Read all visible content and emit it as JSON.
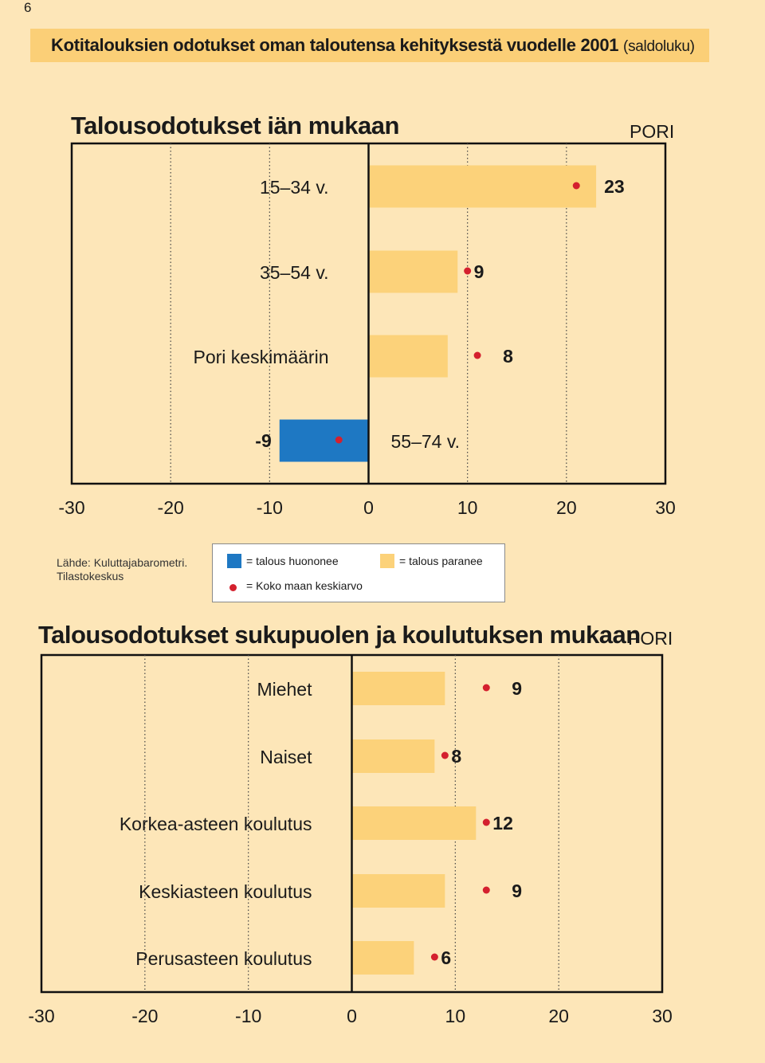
{
  "page_number": "6",
  "header": {
    "title": "Kotitalouksien odotukset oman taloutensa kehityksestä vuodelle 2001",
    "note": "(saldoluku)"
  },
  "legend": {
    "worse_label": "= talous huononee",
    "better_label": "= talous paranee",
    "average_label": "= Koko maan keskiarvo"
  },
  "source": {
    "line1": "Lähde: Kuluttajabarometri.",
    "line2": "Tilastokeskus"
  },
  "colors": {
    "background": "#fde6b8",
    "header_band": "#fbcf77",
    "improve_bar": "#fcd27a",
    "worsen_bar": "#1e78c3",
    "average_marker": "#d4202e"
  },
  "chart_data": [
    {
      "type": "bar",
      "orientation": "horizontal",
      "title": "Talousodotukset iän mukaan",
      "region": "PORI",
      "categories": [
        "15–34 v.",
        "35–54 v.",
        "Pori keskimäärin",
        "55–74 v."
      ],
      "value_labels": [
        "23",
        "9",
        "8",
        "-9"
      ],
      "values": [
        23,
        9,
        8,
        -9
      ],
      "country_average": [
        21,
        10,
        11,
        -3
      ],
      "xlim": [
        -30,
        30
      ],
      "xticks": [
        "-30",
        "-20",
        "-10",
        "0",
        "10",
        "20",
        "30"
      ],
      "grid": "dotted vertical at ±10, ±20"
    },
    {
      "type": "bar",
      "orientation": "horizontal",
      "title": "Talousodotukset sukupuolen ja koulutuksen mukaan",
      "region": "PORI",
      "categories": [
        "Miehet",
        "Naiset",
        "Korkea-asteen koulutus",
        "Keskiasteen koulutus",
        "Perusasteen koulutus"
      ],
      "value_labels": [
        "9",
        "8",
        "12",
        "9",
        "6"
      ],
      "values": [
        9,
        8,
        12,
        9,
        6
      ],
      "country_average": [
        13,
        9,
        13,
        13,
        8
      ],
      "xlim": [
        -30,
        30
      ],
      "xticks": [
        "-30",
        "-20",
        "-10",
        "0",
        "10",
        "20",
        "30"
      ],
      "grid": "dotted vertical at ±10, ±20"
    }
  ]
}
